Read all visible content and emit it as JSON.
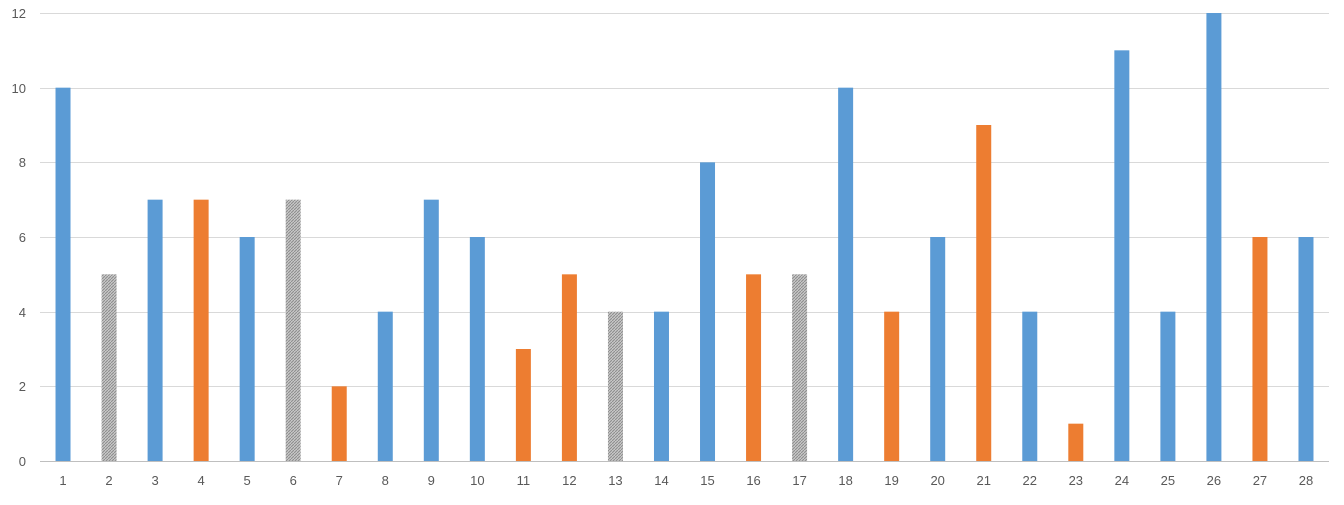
{
  "chart_data": {
    "type": "bar",
    "title": "",
    "xlabel": "",
    "ylabel": "",
    "ylim": [
      0,
      12
    ],
    "yticks": [
      0,
      2,
      4,
      6,
      8,
      10,
      12
    ],
    "grid": true,
    "legend": "none",
    "categories": [
      "1",
      "2",
      "3",
      "4",
      "5",
      "6",
      "7",
      "8",
      "9",
      "10",
      "11",
      "12",
      "13",
      "14",
      "15",
      "16",
      "17",
      "18",
      "19",
      "20",
      "21",
      "22",
      "23",
      "24",
      "25",
      "26",
      "27",
      "28"
    ],
    "values": [
      10,
      5,
      7,
      7,
      6,
      7,
      2,
      4,
      7,
      6,
      3,
      5,
      4,
      4,
      8,
      5,
      5,
      10,
      4,
      6,
      9,
      4,
      1,
      11,
      4,
      12,
      6,
      6
    ],
    "bar_styles": [
      "blue",
      "gray-hatched",
      "blue",
      "orange",
      "blue",
      "gray-hatched",
      "orange",
      "blue",
      "blue",
      "blue",
      "orange",
      "orange",
      "gray-hatched",
      "blue",
      "blue",
      "orange",
      "gray-hatched",
      "blue",
      "orange",
      "blue",
      "orange",
      "blue",
      "orange",
      "blue",
      "blue",
      "blue",
      "orange",
      "blue"
    ],
    "colors": {
      "blue": "#5b9bd5",
      "orange": "#ed7d31",
      "gray-hatched": "#a5a5a5",
      "gridline": "#d9d9d9",
      "axis": "#bfbfbf",
      "tick_text": "#595959"
    }
  }
}
